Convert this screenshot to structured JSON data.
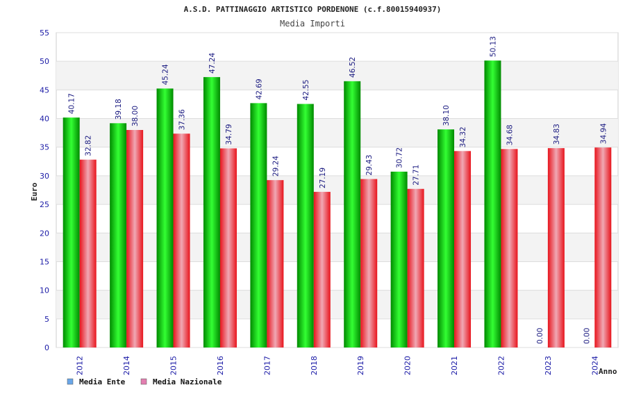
{
  "chart_data": {
    "type": "bar",
    "title": "A.S.D. PATTINAGGIO ARTISTICO PORDENONE (c.f.80015940937)",
    "subtitle": "Media Importi",
    "xlabel": "Anno",
    "ylabel": "Euro",
    "ylim": [
      0,
      55
    ],
    "yticks": [
      "0",
      "5",
      "10",
      "15",
      "20",
      "25",
      "30",
      "35",
      "40",
      "45",
      "50",
      "55"
    ],
    "categories": [
      "2012",
      "2014",
      "2015",
      "2016",
      "2017",
      "2018",
      "2019",
      "2020",
      "2021",
      "2022",
      "2023",
      "2024"
    ],
    "series": [
      {
        "name": "Media Ente",
        "values": [
          40.17,
          39.18,
          45.24,
          47.24,
          42.69,
          42.55,
          46.52,
          30.72,
          38.1,
          50.13,
          0.0,
          0.0
        ],
        "labels": [
          "40.17",
          "39.18",
          "45.24",
          "47.24",
          "42.69",
          "42.55",
          "46.52",
          "30.72",
          "38.10",
          "50.13",
          "0.00",
          "0.00"
        ]
      },
      {
        "name": "Media Nazionale",
        "values": [
          32.82,
          38.0,
          37.36,
          34.79,
          29.24,
          27.19,
          29.43,
          27.71,
          34.32,
          34.68,
          34.83,
          34.94
        ],
        "labels": [
          "32.82",
          "38.00",
          "37.36",
          "34.79",
          "29.24",
          "27.19",
          "29.43",
          "27.71",
          "34.32",
          "34.68",
          "34.83",
          "34.94"
        ]
      }
    ],
    "legend": [
      "Media Ente",
      "Media Nazionale"
    ],
    "legend_position": "bottom-left",
    "grid": true
  },
  "colors": {
    "ente_dark": "#008a00",
    "ente_light": "#33ff33",
    "naz_dark": "#e8141c",
    "naz_light": "#f0a8b4",
    "legend_ente": "#6aa6e8",
    "legend_naz": "#e27fb0",
    "axis_text": "#1a1aa6",
    "value_text": "#1a1a80",
    "band": "#f3f3f3"
  }
}
